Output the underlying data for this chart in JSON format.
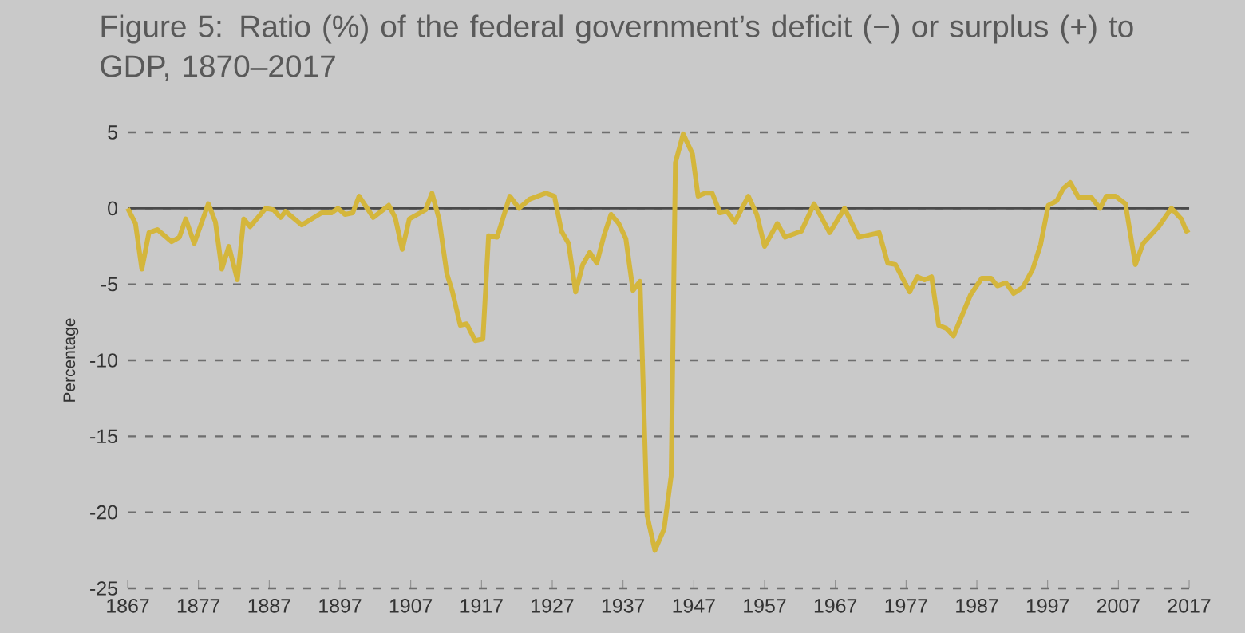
{
  "chart_data": {
    "type": "line",
    "title": "Figure 5: Ratio (%) of the federal government’s deficit (−) or surplus (+) to GDP, 1870–2017",
    "ylabel": "Percentage",
    "x": [
      1867.0,
      1868.1,
      1869.0,
      1870.0,
      1871.2,
      1873.2,
      1874.3,
      1875.2,
      1876.4,
      1878.4,
      1879.4,
      1880.3,
      1881.3,
      1882.5,
      1883.4,
      1884.3,
      1886.5,
      1887.6,
      1888.6,
      1889.3,
      1891.6,
      1894.4,
      1895.8,
      1896.7,
      1897.7,
      1898.8,
      1899.7,
      1901.7,
      1903.9,
      1904.8,
      1905.8,
      1906.8,
      1909.1,
      1910.0,
      1911.0,
      1912.1,
      1912.9,
      1914.0,
      1914.9,
      1916.1,
      1917.2,
      1918.0,
      1919.2,
      1921.0,
      1922.3,
      1923.8,
      1926.1,
      1927.3,
      1928.3,
      1929.3,
      1930.3,
      1931.3,
      1932.3,
      1933.3,
      1934.3,
      1935.3,
      1936.4,
      1937.4,
      1938.4,
      1939.4,
      1940.4,
      1941.5,
      1942.8,
      1943.8,
      1944.4,
      1945.5,
      1946.8,
      1947.6,
      1948.6,
      1949.6,
      1950.7,
      1951.7,
      1952.8,
      1954.7,
      1955.9,
      1957.0,
      1958.8,
      1959.9,
      1962.2,
      1964.0,
      1966.2,
      1968.3,
      1970.3,
      1973.2,
      1974.4,
      1975.5,
      1977.5,
      1978.6,
      1979.6,
      1980.6,
      1981.6,
      1982.7,
      1983.7,
      1986.1,
      1987.7,
      1989.0,
      1989.9,
      1991.1,
      1992.2,
      1993.5,
      1994.9,
      1996.0,
      1997.1,
      1998.3,
      1999.2,
      2000.2,
      2001.4,
      2003.2,
      2004.4,
      2005.3,
      2006.6,
      2008.0,
      2009.4,
      2010.5,
      2012.7,
      2014.5,
      2015.9,
      2016.6,
      2017.0
    ],
    "values": [
      0,
      -1.0,
      -4.0,
      -1.6,
      -1.4,
      -2.2,
      -1.9,
      -0.7,
      -2.3,
      0.3,
      -0.9,
      -4.0,
      -2.5,
      -4.7,
      -0.7,
      -1.2,
      0,
      -0.1,
      -0.6,
      -0.2,
      -1.1,
      -0.3,
      -0.3,
      0,
      -0.4,
      -0.3,
      0.8,
      -0.6,
      0.2,
      -0.6,
      -2.7,
      -0.7,
      -0.1,
      1.0,
      -0.7,
      -4.3,
      -5.5,
      -7.7,
      -7.6,
      -8.7,
      -8.6,
      -1.8,
      -1.9,
      0.8,
      0,
      0.6,
      1.0,
      0.8,
      -1.5,
      -2.3,
      -5.5,
      -3.7,
      -2.9,
      -3.6,
      -1.8,
      -0.4,
      -1.0,
      -2.0,
      -5.4,
      -4.8,
      -20.2,
      -22.5,
      -21.1,
      -17.6,
      3.0,
      4.9,
      3.6,
      0.8,
      1.0,
      1.0,
      -0.3,
      -0.2,
      -0.9,
      0.8,
      -0.4,
      -2.5,
      -1.0,
      -1.9,
      -1.5,
      0.3,
      -1.6,
      0,
      -1.9,
      -1.6,
      -3.6,
      -3.7,
      -5.5,
      -4.5,
      -4.7,
      -4.5,
      -7.7,
      -7.9,
      -8.4,
      -5.7,
      -4.6,
      -4.6,
      -5.1,
      -4.9,
      -5.6,
      -5.2,
      -4.0,
      -2.4,
      0.2,
      0.5,
      1.3,
      1.7,
      0.7,
      0.7,
      0,
      0.8,
      0.8,
      0.3,
      -3.7,
      -2.3,
      -1.2,
      0,
      -0.7,
      -1.5,
      -1.4
    ],
    "color": "#d4b63c",
    "xlim": [
      1867,
      2017
    ],
    "xticks": [
      1867,
      1877,
      1887,
      1897,
      1907,
      1917,
      1927,
      1937,
      1947,
      1957,
      1967,
      1977,
      1987,
      1997,
      2007,
      2017
    ],
    "ylim": [
      -25,
      5
    ],
    "yticks": [
      -25,
      -20,
      -15,
      -10,
      -5,
      0,
      5
    ],
    "grid": "y",
    "ref_lines": [
      {
        "axis": "y",
        "value": 0,
        "color": "#4a4a4a"
      }
    ]
  }
}
